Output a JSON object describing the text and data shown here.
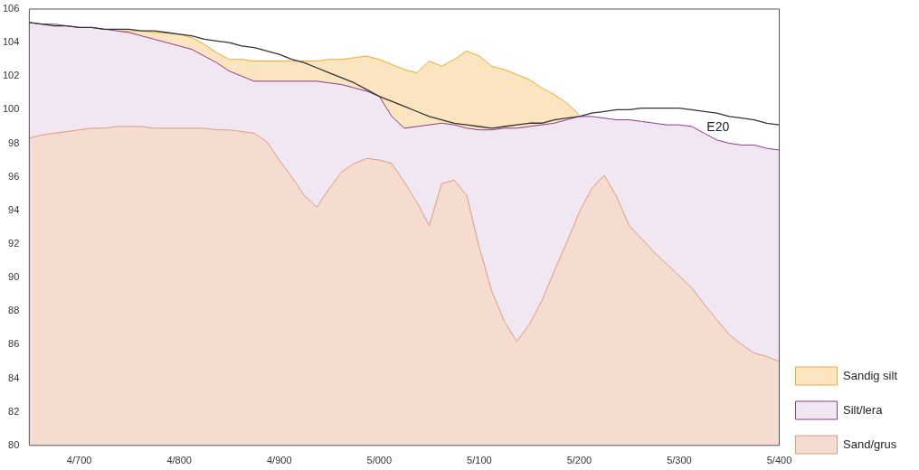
{
  "chart_data": {
    "type": "area",
    "marker": "none",
    "grid": false,
    "legend": "right",
    "categories": [
      null,
      null,
      null,
      null,
      "4/700",
      null,
      null,
      null,
      null,
      null,
      null,
      null,
      "4/800",
      null,
      null,
      null,
      null,
      null,
      null,
      null,
      "4/900",
      null,
      null,
      null,
      null,
      null,
      null,
      null,
      "5/000",
      null,
      null,
      null,
      null,
      null,
      null,
      null,
      "5/100",
      null,
      null,
      null,
      null,
      null,
      null,
      null,
      "5/200",
      null,
      null,
      null,
      null,
      null,
      null,
      null,
      "5/300",
      null,
      null,
      null,
      null,
      null,
      null,
      null,
      "5/400"
    ],
    "ylim": [
      80,
      106
    ],
    "yticks": [
      80,
      82,
      84,
      86,
      88,
      90,
      92,
      94,
      96,
      98,
      100,
      102,
      104,
      106
    ],
    "series": [
      {
        "name": "Sand/grus",
        "color": "#e09a7c",
        "values": [
          98.3,
          98.5,
          98.6,
          98.7,
          98.8,
          98.9,
          98.9,
          99.0,
          99.0,
          99.0,
          98.9,
          98.9,
          98.9,
          98.9,
          98.9,
          98.8,
          98.8,
          98.7,
          98.6,
          98.1,
          97.0,
          96.0,
          94.9,
          94.2,
          95.3,
          96.3,
          96.8,
          97.1,
          97.0,
          96.8,
          95.7,
          94.5,
          93.1,
          95.6,
          95.8,
          94.9,
          91.8,
          89.2,
          87.4,
          86.2,
          87.2,
          88.6,
          90.4,
          92.1,
          93.9,
          95.3,
          96.1,
          94.8,
          93.1,
          92.3,
          91.5,
          90.8,
          90.1,
          89.4,
          88.4,
          87.5,
          86.6,
          86.0,
          85.5,
          85.3,
          85.0
        ]
      },
      {
        "name": "Silt/lera",
        "color": "#8b3a8f",
        "values": [
          105.2,
          105.1,
          105.1,
          105.0,
          104.9,
          104.9,
          104.8,
          104.7,
          104.6,
          104.4,
          104.2,
          104.0,
          103.8,
          103.6,
          103.2,
          102.8,
          102.3,
          102.0,
          101.7,
          101.7,
          101.7,
          101.7,
          101.7,
          101.7,
          101.6,
          101.5,
          101.3,
          101.1,
          100.8,
          99.6,
          98.9,
          99.0,
          99.1,
          99.2,
          99.1,
          98.9,
          98.8,
          98.8,
          98.9,
          98.9,
          99.0,
          99.1,
          99.2,
          99.4,
          99.6,
          99.6,
          99.5,
          99.4,
          99.4,
          99.3,
          99.2,
          99.1,
          99.1,
          99.0,
          98.6,
          98.2,
          98.0,
          97.9,
          97.9,
          97.7,
          97.6
        ]
      },
      {
        "name": "Sandig silt",
        "color": "#f0a830",
        "values": [
          null,
          null,
          null,
          null,
          null,
          null,
          null,
          104.7,
          104.7,
          104.7,
          104.6,
          104.6,
          104.5,
          104.3,
          103.9,
          103.4,
          103.0,
          103.0,
          102.9,
          102.9,
          102.9,
          102.9,
          102.9,
          102.9,
          103.0,
          103.0,
          103.1,
          103.2,
          103.0,
          102.7,
          102.4,
          102.2,
          102.9,
          102.6,
          103.0,
          103.5,
          103.2,
          102.6,
          102.4,
          102.1,
          101.8,
          101.3,
          100.9,
          100.4,
          99.7,
          null,
          null,
          null,
          null,
          null,
          null,
          null,
          null,
          null,
          null,
          null,
          null,
          null,
          null,
          null,
          null
        ]
      },
      {
        "name": "E20",
        "type": "line",
        "color": "#333333",
        "values": [
          105.2,
          105.1,
          105.0,
          105.0,
          104.9,
          104.9,
          104.8,
          104.8,
          104.8,
          104.7,
          104.7,
          104.6,
          104.5,
          104.4,
          104.2,
          104.1,
          104.0,
          103.8,
          103.7,
          103.5,
          103.3,
          103.0,
          102.8,
          102.5,
          102.2,
          101.9,
          101.6,
          101.2,
          100.8,
          100.5,
          100.2,
          99.9,
          99.6,
          99.4,
          99.2,
          99.1,
          99.0,
          98.9,
          99.0,
          99.1,
          99.2,
          99.2,
          99.4,
          99.5,
          99.6,
          99.8,
          99.9,
          100.0,
          100.0,
          100.1,
          100.1,
          100.1,
          100.1,
          100.0,
          99.9,
          99.8,
          99.6,
          99.5,
          99.4,
          99.2,
          99.1
        ]
      }
    ]
  }
}
